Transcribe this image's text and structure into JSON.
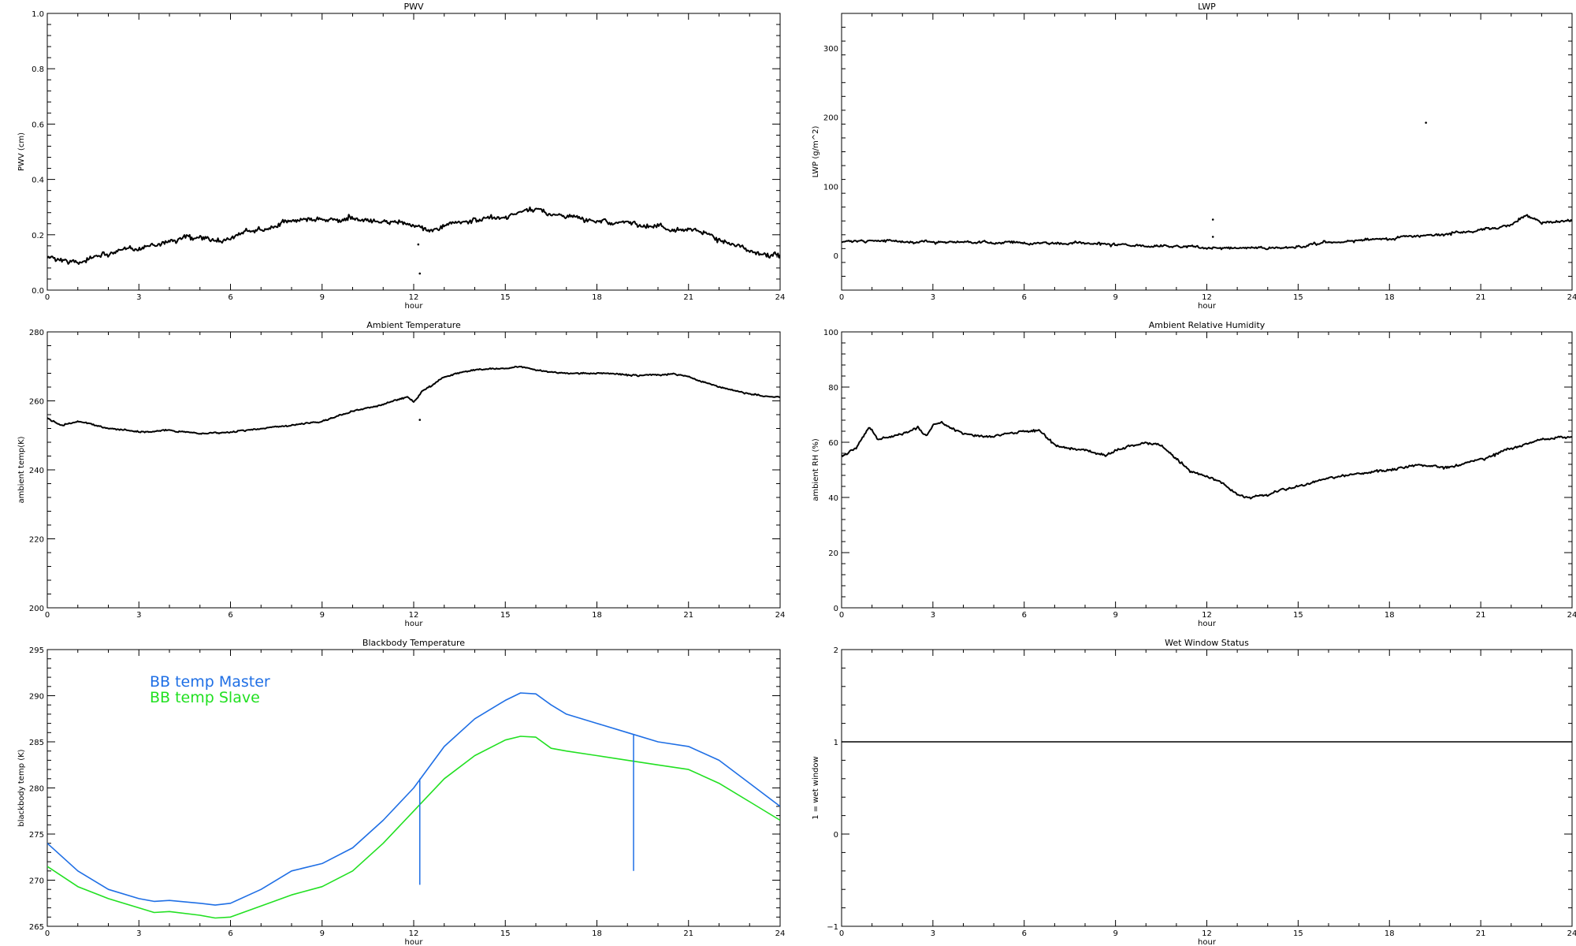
{
  "figure": {
    "background": "#ffffff",
    "axis_color": "#000000"
  },
  "chart_data": [
    {
      "id": "pwv",
      "type": "line",
      "title": "PWV",
      "xlabel": "hour",
      "ylabel": "PWV (cm)",
      "xlim": [
        0,
        24
      ],
      "ylim": [
        0,
        1.0
      ],
      "xticks": [
        0,
        3,
        6,
        9,
        12,
        15,
        18,
        21,
        24
      ],
      "yticks": [
        "0.0",
        "0.2",
        "0.4",
        "0.6",
        "0.8",
        "1.0"
      ],
      "grid": false,
      "series": [
        {
          "color": "#000000",
          "style": "noisy",
          "noise": 0.012,
          "x": [
            0,
            0.5,
            1,
            1.5,
            2,
            2.5,
            3,
            3.5,
            4,
            4.5,
            5,
            5.5,
            6,
            6.5,
            7,
            7.5,
            8,
            8.5,
            9,
            9.5,
            10,
            10.5,
            11,
            11.5,
            12,
            12.5,
            13,
            13.5,
            14,
            14.5,
            15,
            15.5,
            16,
            16.5,
            17,
            17.5,
            18,
            18.5,
            19,
            19.5,
            20,
            20.5,
            21,
            21.5,
            22,
            22.5,
            23,
            23.5,
            24
          ],
          "y": [
            0.12,
            0.11,
            0.1,
            0.12,
            0.13,
            0.14,
            0.15,
            0.16,
            0.18,
            0.19,
            0.18,
            0.18,
            0.19,
            0.21,
            0.22,
            0.23,
            0.25,
            0.26,
            0.26,
            0.25,
            0.26,
            0.25,
            0.24,
            0.25,
            0.23,
            0.22,
            0.23,
            0.24,
            0.25,
            0.26,
            0.26,
            0.28,
            0.29,
            0.28,
            0.27,
            0.26,
            0.25,
            0.24,
            0.25,
            0.23,
            0.23,
            0.22,
            0.22,
            0.21,
            0.18,
            0.16,
            0.14,
            0.13,
            0.12
          ]
        }
      ],
      "outliers": [
        [
          12.2,
          0.06
        ],
        [
          12.15,
          0.165
        ]
      ]
    },
    {
      "id": "lwp",
      "type": "line",
      "title": "LWP",
      "xlabel": "hour",
      "ylabel": "LWP (g/m^2)",
      "xlim": [
        0,
        24
      ],
      "ylim": [
        -50,
        350
      ],
      "xticks": [
        0,
        3,
        6,
        9,
        12,
        15,
        18,
        21,
        24
      ],
      "yticks": [
        "0",
        "100",
        "200",
        "300"
      ],
      "grid": false,
      "series": [
        {
          "color": "#000000",
          "style": "noisy",
          "noise": 2.5,
          "x": [
            0,
            1,
            2,
            3,
            4,
            5,
            6,
            7,
            8,
            9,
            10,
            11,
            12,
            13,
            14,
            15,
            16,
            17,
            18,
            19,
            20,
            21,
            22,
            22.5,
            23,
            24
          ],
          "y": [
            20,
            22,
            21,
            20,
            19,
            18,
            19,
            18,
            17,
            15,
            14,
            13,
            12,
            10,
            11,
            12,
            18,
            22,
            25,
            28,
            32,
            37,
            45,
            58,
            47,
            52
          ]
        }
      ],
      "outliers": [
        [
          12.2,
          52
        ],
        [
          12.2,
          27
        ],
        [
          19.2,
          192
        ]
      ]
    },
    {
      "id": "ambient-temperature",
      "type": "line",
      "title": "Ambient Temperature",
      "xlabel": "hour",
      "ylabel": "ambient temp(K)",
      "xlim": [
        0,
        24
      ],
      "ylim": [
        200,
        280
      ],
      "xticks": [
        0,
        3,
        6,
        9,
        12,
        15,
        18,
        21,
        24
      ],
      "yticks": [
        "200",
        "220",
        "240",
        "260",
        "280"
      ],
      "grid": false,
      "series": [
        {
          "color": "#000000",
          "style": "noisy",
          "noise": 0.3,
          "x": [
            0,
            0.5,
            1,
            1.5,
            2,
            3,
            4,
            5,
            6,
            7,
            8,
            9,
            10,
            11,
            11.8,
            12,
            12.3,
            12.7,
            13,
            14,
            15,
            15.5,
            16,
            17,
            18,
            19,
            20,
            20.5,
            21,
            22,
            23,
            24
          ],
          "y": [
            255,
            253,
            254,
            253,
            252,
            251,
            251.5,
            250.5,
            251,
            252,
            253,
            254,
            257,
            259,
            261,
            259.5,
            263,
            265,
            267,
            269,
            269.5,
            270,
            269,
            268,
            268,
            267.5,
            267.5,
            268,
            267,
            264,
            262,
            261
          ]
        }
      ],
      "outliers": [
        [
          12.2,
          254.5
        ]
      ]
    },
    {
      "id": "ambient-relative-humidity",
      "type": "line",
      "title": "Ambient Relative Humidity",
      "xlabel": "hour",
      "ylabel": "ambient RH (%)",
      "xlim": [
        0,
        24
      ],
      "ylim": [
        0,
        100
      ],
      "xticks": [
        0,
        3,
        6,
        9,
        12,
        15,
        18,
        21,
        24
      ],
      "yticks": [
        "0",
        "20",
        "40",
        "60",
        "80",
        "100"
      ],
      "grid": false,
      "series": [
        {
          "color": "#000000",
          "style": "noisy",
          "noise": 0.6,
          "x": [
            0,
            0.5,
            0.9,
            1.2,
            2,
            2.5,
            2.8,
            3,
            3.3,
            4,
            5,
            6,
            6.5,
            7,
            8,
            8.7,
            9,
            10,
            10.5,
            11,
            11.5,
            12,
            12.5,
            13,
            13.5,
            14,
            15,
            16,
            17,
            18,
            19,
            20,
            21,
            22,
            23,
            24
          ],
          "y": [
            55,
            58,
            66,
            61,
            63,
            65,
            62,
            66,
            67,
            63,
            62,
            64,
            64,
            59,
            57,
            55,
            57,
            60,
            59,
            54,
            49,
            48,
            45,
            41,
            40,
            41,
            44,
            47,
            49,
            50,
            52,
            51,
            54,
            58,
            61,
            62
          ]
        }
      ],
      "outliers": []
    },
    {
      "id": "blackbody-temperature",
      "type": "line",
      "title": "Blackbody Temperature",
      "xlabel": "hour",
      "ylabel": "blackbody temp (K)",
      "xlim": [
        0,
        24
      ],
      "ylim": [
        265,
        295
      ],
      "xticks": [
        0,
        3,
        6,
        9,
        12,
        15,
        18,
        21,
        24
      ],
      "yticks": [
        "265",
        "270",
        "275",
        "280",
        "285",
        "290",
        "295"
      ],
      "grid": false,
      "legend": {
        "placement": "top-left",
        "entries": [
          {
            "label": "BB temp Master",
            "color": "#1f6fe5"
          },
          {
            "label": "BB temp Slave",
            "color": "#22e022"
          }
        ]
      },
      "series": [
        {
          "name": "BB temp Master",
          "color": "#1f6fe5",
          "style": "smooth",
          "x": [
            0,
            1,
            2,
            3,
            3.5,
            4,
            5,
            5.5,
            6,
            7,
            8,
            9,
            10,
            11,
            12,
            13,
            14,
            15,
            15.5,
            16,
            16.5,
            17,
            18,
            19,
            20,
            21,
            22,
            23,
            24
          ],
          "y": [
            274,
            271,
            269,
            268,
            267.7,
            267.8,
            267.5,
            267.3,
            267.5,
            269,
            271,
            271.8,
            273.5,
            276.5,
            280,
            284.5,
            287.5,
            289.5,
            290.3,
            290.2,
            289,
            288,
            287,
            286,
            285,
            284.5,
            283,
            280.5,
            278
          ]
        },
        {
          "name": "BB temp Slave",
          "color": "#22e022",
          "style": "smooth",
          "x": [
            0,
            1,
            2,
            3,
            3.5,
            4,
            5,
            5.5,
            6,
            7,
            8,
            9,
            10,
            11,
            12,
            13,
            14,
            15,
            15.5,
            16,
            16.5,
            17,
            18,
            19,
            20,
            21,
            22,
            23,
            24
          ],
          "y": [
            271.5,
            269.3,
            268,
            267,
            266.5,
            266.6,
            266.2,
            265.9,
            266,
            267.2,
            268.4,
            269.3,
            271,
            274,
            277.5,
            281,
            283.5,
            285.2,
            285.6,
            285.5,
            284.3,
            284,
            283.5,
            283,
            282.5,
            282,
            280.5,
            278.5,
            276.5
          ]
        }
      ],
      "spikes": [
        {
          "x": 12.2,
          "y_top": 281,
          "y_bottom": 269.5,
          "color": "#1f6fe5"
        },
        {
          "x": 19.2,
          "y_top": 285.8,
          "y_bottom": 271,
          "color": "#1f6fe5"
        }
      ]
    },
    {
      "id": "wet-window-status",
      "type": "line",
      "title": "Wet Window Status",
      "xlabel": "hour",
      "ylabel": "1 = wet window",
      "xlim": [
        0,
        24
      ],
      "ylim": [
        -1,
        2
      ],
      "xticks": [
        0,
        3,
        6,
        9,
        12,
        15,
        18,
        21,
        24
      ],
      "yticks": [
        "−1",
        "0",
        "1",
        "2"
      ],
      "grid": false,
      "series": [
        {
          "color": "#000000",
          "style": "smooth",
          "x": [
            0,
            24
          ],
          "y": [
            1,
            1
          ]
        }
      ]
    }
  ]
}
